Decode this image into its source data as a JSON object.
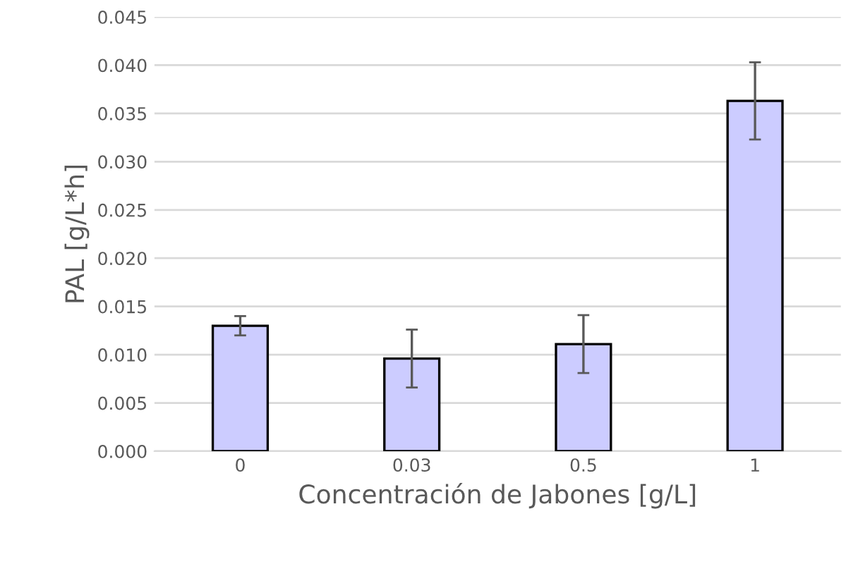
{
  "chart_data": {
    "type": "bar",
    "xlabel": "Concentración de Jabones [g/L]",
    "ylabel": "PAL [g/L*h]",
    "categories": [
      "0",
      "0.03",
      "0.5",
      "1"
    ],
    "values": [
      0.013,
      0.0096,
      0.0111,
      0.0363
    ],
    "errors": [
      0.001,
      0.003,
      0.003,
      0.004
    ],
    "color": "#ccccff",
    "ylim": [
      0,
      0.045
    ],
    "yticks": [
      {
        "value": 0,
        "label": "0.000"
      },
      {
        "value": 0.005,
        "label": "0.005"
      },
      {
        "value": 0.01,
        "label": "0.010"
      },
      {
        "value": 0.015,
        "label": "0.015"
      },
      {
        "value": 0.02,
        "label": "0.020"
      },
      {
        "value": 0.025,
        "label": "0.025"
      },
      {
        "value": 0.03,
        "label": "0.030"
      },
      {
        "value": 0.035,
        "label": "0.035"
      },
      {
        "value": 0.04,
        "label": "0.040"
      },
      {
        "value": 0.045,
        "label": "0.045"
      }
    ],
    "grid": "y"
  }
}
